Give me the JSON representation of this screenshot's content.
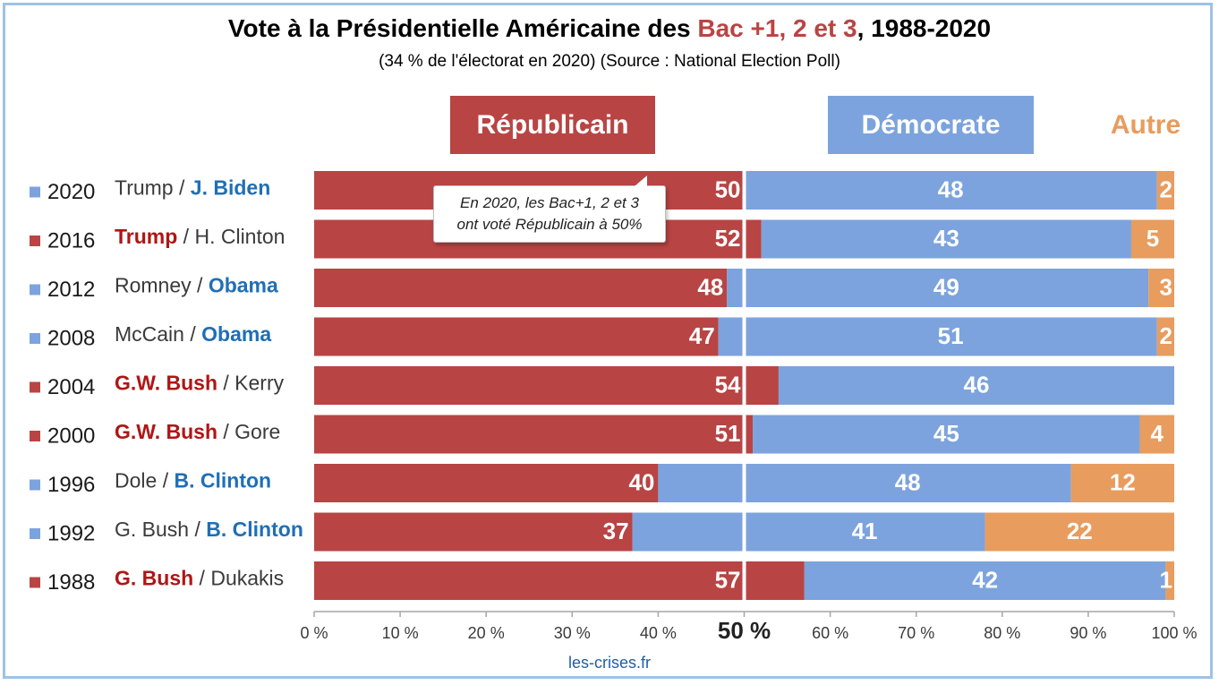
{
  "title": {
    "pre": "Vote à la Présidentielle Américaine des ",
    "highlight": "Bac +1, 2 et 3",
    "post": ", 1988-2020"
  },
  "subtitle": "(34 % de l'électorat en 2020) (Source : National Election Poll)",
  "headers": {
    "republican": "Républicain",
    "democrat": "Démocrate",
    "other": "Autre"
  },
  "callout": {
    "line1": "En 2020, les Bac+1, 2 et 3",
    "line2": "ont voté Républicain à 50%"
  },
  "footer": "les-crises.fr",
  "colors": {
    "republican": "#B94444",
    "democrat": "#7CA3DD",
    "other": "#E89C5E",
    "dem_name": "#1F6FB5",
    "rep_name": "#B01515",
    "frame": "#9DC3E6"
  },
  "chart_data": {
    "type": "bar",
    "orientation": "horizontal",
    "stacked": true,
    "xlim": [
      0,
      100
    ],
    "x_ticks": [
      "0 %",
      "10 %",
      "20 %",
      "30 %",
      "40 %",
      "50 %",
      "60 %",
      "70 %",
      "80 %",
      "90 %",
      "100 %"
    ],
    "series": [
      {
        "name": "Républicain"
      },
      {
        "name": "Démocrate"
      },
      {
        "name": "Autre"
      }
    ],
    "rows": [
      {
        "year": "2020",
        "winner": "dem",
        "rep_name": "Trump",
        "dem_name": "J. Biden",
        "rep": 50,
        "dem": 48,
        "other": 2
      },
      {
        "year": "2016",
        "winner": "rep",
        "rep_name": "Trump",
        "dem_name": "H. Clinton",
        "rep": 52,
        "dem": 43,
        "other": 5
      },
      {
        "year": "2012",
        "winner": "dem",
        "rep_name": "Romney",
        "dem_name": "Obama",
        "rep": 48,
        "dem": 49,
        "other": 3
      },
      {
        "year": "2008",
        "winner": "dem",
        "rep_name": "McCain",
        "dem_name": "Obama",
        "rep": 47,
        "dem": 51,
        "other": 2
      },
      {
        "year": "2004",
        "winner": "rep",
        "rep_name": "G.W. Bush",
        "dem_name": "Kerry",
        "rep": 54,
        "dem": 46,
        "other": 0
      },
      {
        "year": "2000",
        "winner": "rep",
        "rep_name": "G.W. Bush",
        "dem_name": "Gore",
        "rep": 51,
        "dem": 45,
        "other": 4
      },
      {
        "year": "1996",
        "winner": "dem",
        "rep_name": "Dole",
        "dem_name": "B. Clinton",
        "rep": 40,
        "dem": 48,
        "other": 12
      },
      {
        "year": "1992",
        "winner": "dem",
        "rep_name": "G. Bush",
        "dem_name": "B. Clinton",
        "rep": 37,
        "dem": 41,
        "other": 22
      },
      {
        "year": "1988",
        "winner": "rep",
        "rep_name": "G. Bush",
        "dem_name": "Dukakis",
        "rep": 57,
        "dem": 42,
        "other": 1
      }
    ]
  }
}
